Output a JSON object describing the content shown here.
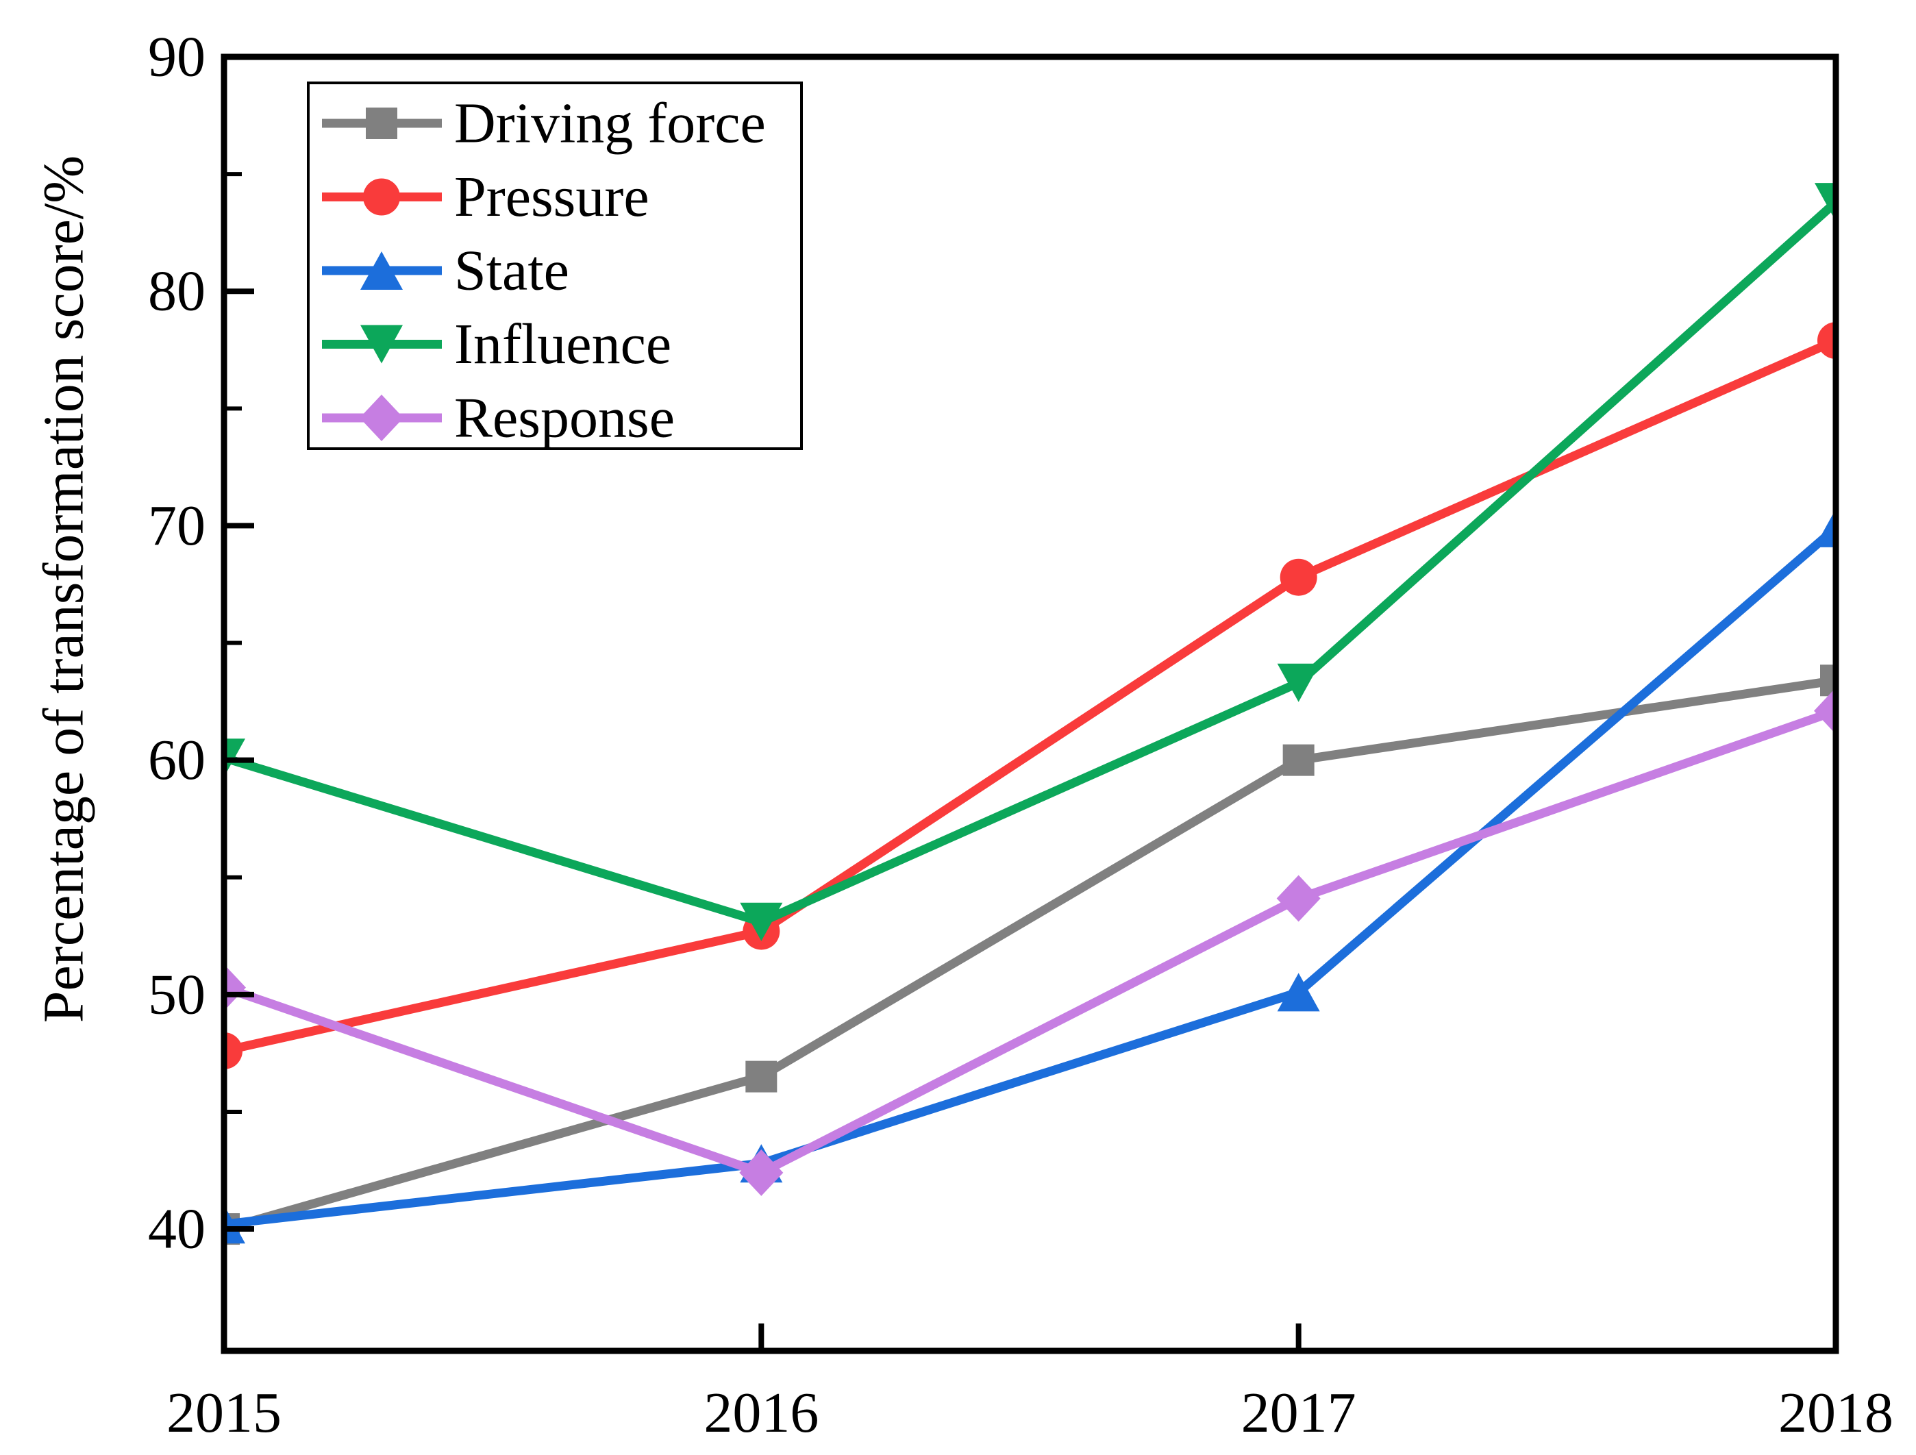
{
  "figure": {
    "y_axis_title": "Percentage of transformation score/%"
  },
  "chart_data": {
    "type": "line",
    "title": "",
    "xlabel": "",
    "ylabel": "Percentage of transformation score/%",
    "categories": [
      "2015",
      "2016",
      "2017",
      "2018"
    ],
    "series": [
      {
        "name": "Driving force",
        "marker": "square",
        "color": "#808080",
        "values": [
          40.0,
          46.5,
          60.0,
          63.4
        ]
      },
      {
        "name": "Pressure",
        "marker": "circle",
        "color": "#F93B3B",
        "values": [
          47.6,
          52.7,
          67.8,
          77.9
        ]
      },
      {
        "name": "State",
        "marker": "triangle-up",
        "color": "#1C6EDB",
        "values": [
          40.2,
          42.8,
          50.1,
          69.9
        ]
      },
      {
        "name": "Influence",
        "marker": "triangle-down",
        "color": "#0CA75A",
        "values": [
          60.1,
          53.1,
          63.3,
          83.8
        ]
      },
      {
        "name": "Response",
        "marker": "diamond",
        "color": "#C67EE2",
        "values": [
          50.3,
          42.4,
          54.1,
          62.1
        ]
      }
    ],
    "ylim": [
      34.8,
      90
    ],
    "yticks": [
      40,
      50,
      60,
      70,
      80,
      90
    ],
    "yticks_minor": [
      45,
      55,
      65,
      75,
      85
    ],
    "legend_position": "top-left",
    "grid": false,
    "axis_color": "#000000",
    "background_color": "#ffffff"
  }
}
